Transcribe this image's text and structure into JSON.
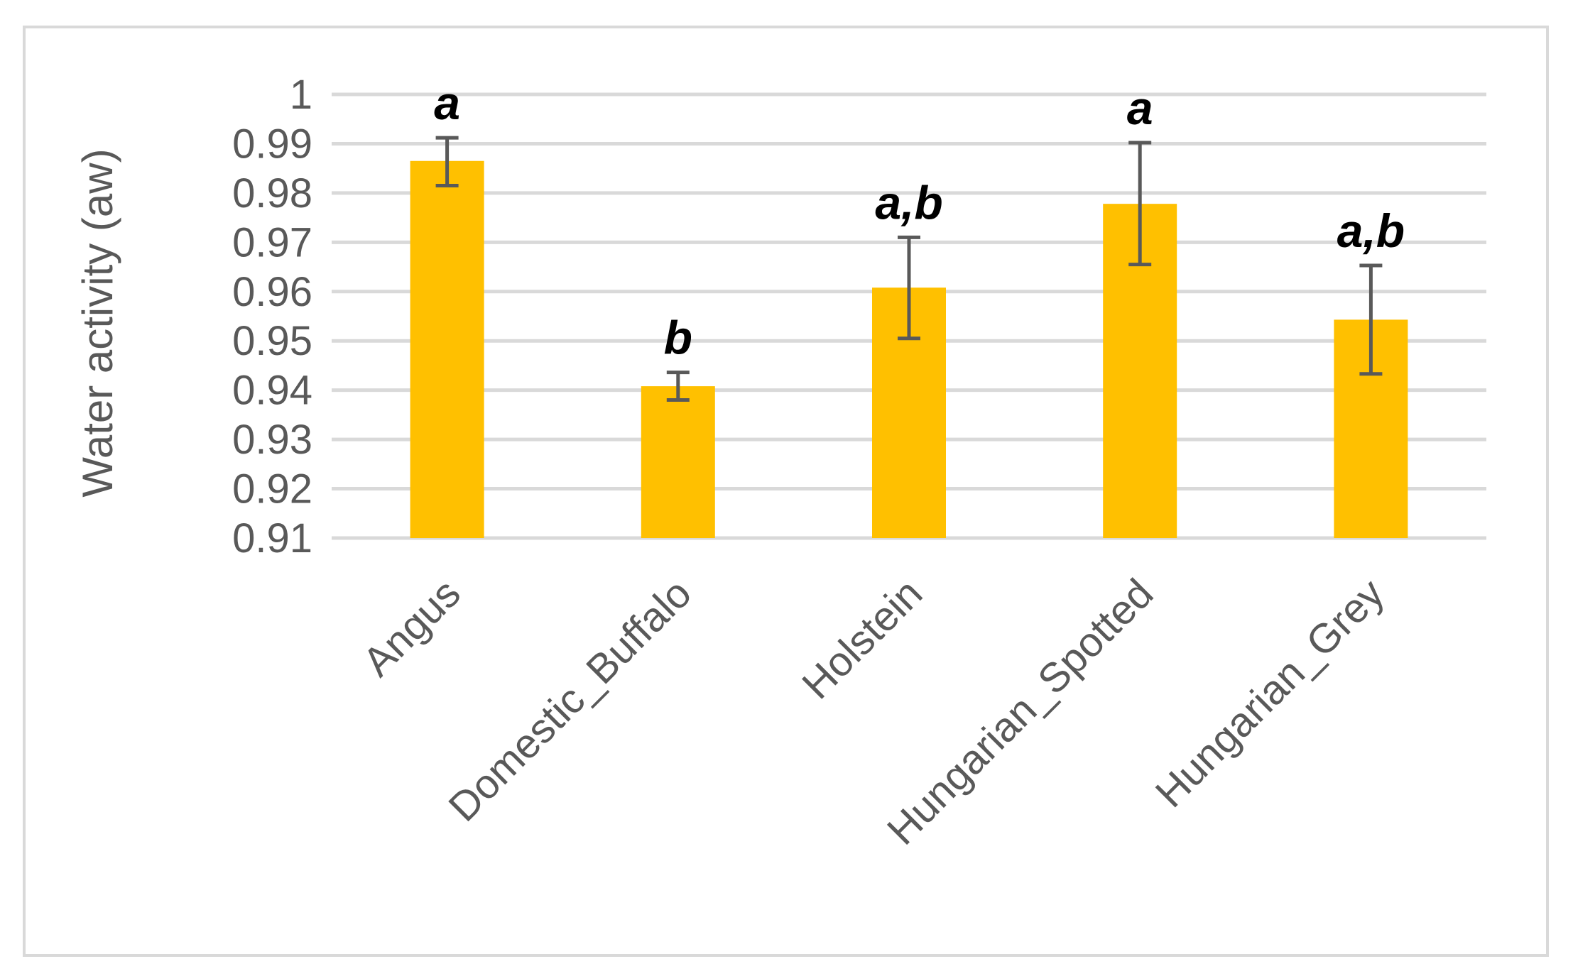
{
  "chart_data": {
    "type": "bar",
    "categories": [
      "Angus",
      "Domestic_Buffalo",
      "Holstein",
      "Hungarian_Spotted",
      "Hungarian_Grey"
    ],
    "values": [
      0.9865,
      0.9408,
      0.9608,
      0.9778,
      0.9543
    ],
    "error_bars": {
      "low": [
        0.9815,
        0.938,
        0.9505,
        0.9655,
        0.9433
      ],
      "high": [
        0.9912,
        0.9436,
        0.971,
        0.9902,
        0.9653
      ]
    },
    "annotations": [
      "a",
      "b",
      "a,b",
      "a",
      "a,b"
    ],
    "title": "",
    "xlabel": "",
    "ylabel": "Water activity (aw)",
    "ylim": [
      0.91,
      1.0
    ],
    "yticks": [
      0.91,
      0.92,
      0.93,
      0.94,
      0.95,
      0.96,
      0.97,
      0.98,
      0.99,
      1
    ],
    "ytick_labels": [
      "0.91",
      "0.92",
      "0.93",
      "0.94",
      "0.95",
      "0.96",
      "0.97",
      "0.98",
      "0.99",
      "1"
    ],
    "grid": true,
    "legend": "none",
    "colors": {
      "bar": "#FFC000",
      "error_bar": "#595959",
      "grid": "#D9D9D9",
      "frame": "#D9D9D9",
      "text": "#595959",
      "annotation": "#000000"
    }
  }
}
